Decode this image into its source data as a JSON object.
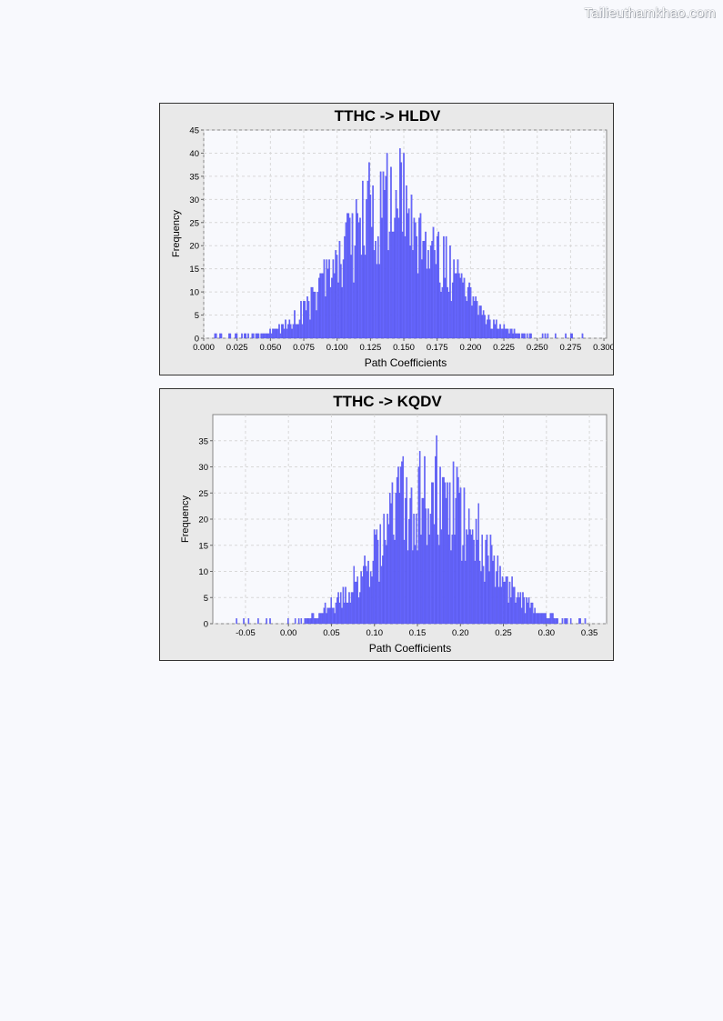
{
  "watermark": "Tailieuthamkhao.com",
  "chart_data": [
    {
      "type": "bar",
      "title": "TTHC -> HLDV",
      "xlabel": "Path Coefficients",
      "ylabel": "Frequency",
      "xlim": [
        0.0,
        0.302
      ],
      "ylim": [
        0,
        45
      ],
      "xticks": [
        0.0,
        0.025,
        0.05,
        0.075,
        0.1,
        0.125,
        0.15,
        0.175,
        0.2,
        0.225,
        0.25,
        0.275,
        0.3
      ],
      "xtick_labels": [
        "0.000",
        "0.025",
        "0.050",
        "0.075",
        "0.100",
        "0.125",
        "0.150",
        "0.175",
        "0.200",
        "0.225",
        "0.250",
        "0.275",
        "0.300"
      ],
      "yticks": [
        0,
        5,
        10,
        15,
        20,
        25,
        30,
        35,
        40,
        45
      ],
      "ytick_labels": [
        "0",
        "5",
        "10",
        "15",
        "20",
        "25",
        "30",
        "35",
        "40",
        "45"
      ],
      "grid": true,
      "bar_color": "#6666ff",
      "distribution": {
        "center": 0.14,
        "spread": 0.037,
        "peak": 43,
        "bins": 300,
        "min": 0.006,
        "max": 0.295
      }
    },
    {
      "type": "bar",
      "title": "TTHC -> KQDV",
      "xlabel": "Path Coefficients",
      "ylabel": "Frequency",
      "xlim": [
        -0.088,
        0.37
      ],
      "ylim": [
        0,
        40
      ],
      "xticks": [
        -0.05,
        0.0,
        0.05,
        0.1,
        0.15,
        0.2,
        0.25,
        0.3,
        0.35
      ],
      "xtick_labels": [
        "-0.05",
        "0.00",
        "0.05",
        "0.10",
        "0.15",
        "0.20",
        "0.25",
        "0.30",
        "0.35"
      ],
      "yticks": [
        0,
        5,
        10,
        15,
        20,
        25,
        30,
        35
      ],
      "ytick_labels": [
        "0",
        "5",
        "10",
        "15",
        "20",
        "25",
        "30",
        "35"
      ],
      "grid": true,
      "bar_color": "#6666ff",
      "distribution": {
        "center": 0.165,
        "spread": 0.057,
        "peak": 38,
        "bins": 300,
        "min": -0.068,
        "max": 0.35
      }
    }
  ]
}
